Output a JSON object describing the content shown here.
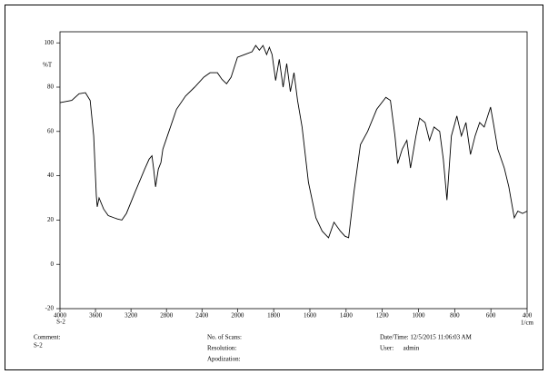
{
  "chart_data": {
    "type": "line",
    "y_label": "%T",
    "x_label": "1/cm",
    "x_sublabel": "S-2",
    "xlim": [
      4000,
      400
    ],
    "x_scale_break": 2000,
    "ylim": [
      -20,
      105
    ],
    "xticks": [
      4000,
      3600,
      3200,
      2800,
      2400,
      2000,
      1800,
      1600,
      1400,
      1200,
      1000,
      800,
      600,
      400
    ],
    "yticks": [
      -20,
      0,
      20,
      40,
      60,
      80,
      100
    ],
    "color": "#000000",
    "x": [
      4000,
      3867,
      3785,
      3713,
      3660,
      3620,
      3590,
      3580,
      3560,
      3508,
      3456,
      3354,
      3303,
      3251,
      3150,
      3046,
      2995,
      2964,
      2944,
      2923,
      2892,
      2862,
      2841,
      2790,
      2687,
      2585,
      2482,
      2379,
      2308,
      2226,
      2174,
      2123,
      2072,
      2000,
      1960,
      1920,
      1899,
      1879,
      1859,
      1839,
      1824,
      1809,
      1789,
      1769,
      1748,
      1728,
      1708,
      1688,
      1668,
      1643,
      1608,
      1567,
      1532,
      1497,
      1467,
      1432,
      1406,
      1386,
      1356,
      1321,
      1281,
      1231,
      1180,
      1155,
      1130,
      1115,
      1090,
      1064,
      1044,
      1014,
      994,
      964,
      939,
      914,
      883,
      863,
      843,
      818,
      788,
      763,
      738,
      713,
      687,
      662,
      637,
      602,
      587,
      562,
      526,
      501,
      471,
      451,
      425,
      400
    ],
    "values": [
      73,
      74,
      77,
      77.5,
      74,
      58,
      31,
      26,
      30,
      25,
      22,
      20.5,
      20,
      23,
      33,
      43,
      47.5,
      49,
      43,
      35,
      43,
      46,
      52,
      58,
      70,
      76,
      80,
      84.5,
      86.5,
      86.5,
      83.5,
      81.5,
      84.5,
      93.5,
      94.7,
      96,
      98.8,
      96.7,
      98.8,
      94.7,
      98,
      94.7,
      83,
      92.6,
      80,
      90.6,
      78,
      86.5,
      74,
      62,
      37,
      21,
      15,
      12,
      19,
      15,
      12.7,
      12,
      33,
      54,
      60,
      70,
      75.4,
      74,
      58,
      45.5,
      52,
      56,
      43.5,
      58,
      66,
      64,
      56,
      62,
      60,
      47.5,
      29,
      58,
      67,
      58,
      64,
      49.6,
      58,
      64,
      62,
      71,
      64,
      52,
      43.5,
      35,
      21,
      24,
      23,
      24
    ]
  },
  "info": {
    "comment_label": "Comment:",
    "comment": "S-2",
    "scans": "No. of Scans:",
    "resolution": "Resolution:",
    "apodization": "Apodization:",
    "datetime": "Date/Time: 12/5/2015 11:06:03 AM",
    "user": "User:      admin"
  }
}
